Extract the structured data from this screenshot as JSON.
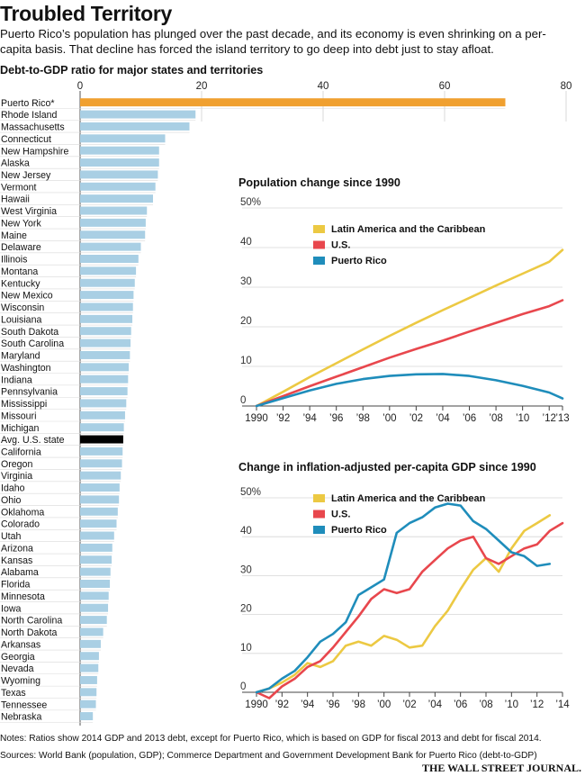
{
  "headline": "Troubled Territory",
  "dek": "Puerto Rico’s population has plunged over the past decade, and its economy is even shrinking on a per-capita basis. That decline has forced the island territory to go deep into debt just to stay afloat.",
  "notes": "Notes: Ratios show 2014 GDP and 2013 debt, except for Puerto Rico, which is based on GDP for fiscal 2013 and debt for fiscal 2014.",
  "sources": "Sources: World Bank (population, GDP); Commerce Department and Government Development Bank for Puerto Rico (debt-to-GDP)",
  "publisher": "THE WALL STREET JOURNAL.",
  "colors": {
    "highlight": "#f0a030",
    "bar": "#a9cfe4",
    "average": "#000000",
    "latam": "#ecc943",
    "us": "#e8474d",
    "pr": "#1f8dbb"
  },
  "chart_data": [
    {
      "type": "bar",
      "orientation": "horizontal",
      "title": "Debt-to-GDP ratio for major states and territories",
      "xlim": [
        0,
        80
      ],
      "xticks": [
        "0",
        "20",
        "40",
        "60",
        "80"
      ],
      "categories": [
        "Puerto Rico*",
        "Rhode Island",
        "Massachusetts",
        "Connecticut",
        "New Hampshire",
        "Alaska",
        "New Jersey",
        "Vermont",
        "Hawaii",
        "West Virginia",
        "New York",
        "Maine",
        "Delaware",
        "Illinois",
        "Montana",
        "Kentucky",
        "New Mexico",
        "Wisconsin",
        "Louisiana",
        "South Dakota",
        "South Carolina",
        "Maryland",
        "Washington",
        "Indiana",
        "Pennsylvania",
        "Mississippi",
        "Missouri",
        "Michigan",
        "Avg. U.S. state",
        "California",
        "Oregon",
        "Virginia",
        "Idaho",
        "Ohio",
        "Oklahoma",
        "Colorado",
        "Utah",
        "Arizona",
        "Kansas",
        "Alabama",
        "Florida",
        "Minnesota",
        "Iowa",
        "North Carolina",
        "North Dakota",
        "Arkansas",
        "Georgia",
        "Nevada",
        "Wyoming",
        "Texas",
        "Tennessee",
        "Nebraska"
      ],
      "values": [
        70,
        19,
        18,
        14,
        13,
        13,
        12.8,
        12.4,
        12,
        11,
        10.8,
        10.7,
        10,
        9.6,
        9.2,
        9,
        8.8,
        8.7,
        8.6,
        8.4,
        8.3,
        8.2,
        8,
        7.9,
        7.8,
        7.6,
        7.4,
        7.2,
        7.1,
        7,
        6.9,
        6.7,
        6.5,
        6.4,
        6.2,
        6,
        5.6,
        5.3,
        5.2,
        5,
        4.9,
        4.7,
        4.6,
        4.4,
        3.8,
        3.4,
        3.1,
        3,
        2.8,
        2.7,
        2.6,
        2.1
      ]
    },
    {
      "type": "line",
      "title": "Population change since 1990",
      "ylim": [
        0,
        50
      ],
      "yticks": [
        "50%",
        "40",
        "30",
        "20",
        "10",
        "0"
      ],
      "xticks": [
        "1990",
        "’92",
        "’94",
        "’96",
        "’98",
        "’00",
        "’02",
        "’04",
        "’06",
        "’08",
        "’10",
        "’12",
        "’13"
      ],
      "legend_position": "top-left",
      "series": [
        {
          "name": "Latin America and the Caribbean",
          "color": "#ecc943",
          "x": [
            1990,
            1992,
            1994,
            1996,
            1998,
            2000,
            2002,
            2004,
            2006,
            2008,
            2010,
            2012,
            2013
          ],
          "y": [
            0,
            3.6,
            7.3,
            10.8,
            14.3,
            17.7,
            21.0,
            24.2,
            27.3,
            30.4,
            33.4,
            36.4,
            39.4
          ]
        },
        {
          "name": "U.S.",
          "color": "#e8474d",
          "x": [
            1990,
            1992,
            1994,
            1996,
            1998,
            2000,
            2002,
            2004,
            2006,
            2008,
            2010,
            2012,
            2013
          ],
          "y": [
            0,
            2.5,
            5.0,
            7.4,
            9.8,
            12.2,
            14.4,
            16.5,
            18.8,
            21.0,
            23.2,
            25.2,
            26.7
          ]
        },
        {
          "name": "Puerto Rico",
          "color": "#1f8dbb",
          "x": [
            1990,
            1992,
            1994,
            1996,
            1998,
            2000,
            2002,
            2004,
            2006,
            2008,
            2010,
            2012,
            2013
          ],
          "y": [
            0,
            2.0,
            3.9,
            5.6,
            6.8,
            7.6,
            8.0,
            8.1,
            7.6,
            6.5,
            5.1,
            3.4,
            1.9
          ]
        }
      ]
    },
    {
      "type": "line",
      "title": "Change in inflation-adjusted per-capita GDP since 1990",
      "ylim": [
        0,
        50
      ],
      "yticks": [
        "50%",
        "40",
        "30",
        "20",
        "10",
        "0"
      ],
      "xticks": [
        "1990",
        "’92",
        "’94",
        "’96",
        "’98",
        "’00",
        "’02",
        "’04",
        "’06",
        "’08",
        "’10",
        "’12",
        "’14"
      ],
      "legend_position": "top-left",
      "series": [
        {
          "name": "Latin America and the Caribbean",
          "color": "#ecc943",
          "x": [
            1990,
            1991,
            1992,
            1993,
            1994,
            1995,
            1996,
            1997,
            1998,
            1999,
            2000,
            2001,
            2002,
            2003,
            2004,
            2005,
            2006,
            2007,
            2008,
            2009,
            2010,
            2011,
            2012,
            2013
          ],
          "y": [
            0,
            1.0,
            2.5,
            4.5,
            7.5,
            6.5,
            8.0,
            12.0,
            13.0,
            12.0,
            14.5,
            13.5,
            11.5,
            12.0,
            17.0,
            21.0,
            26.5,
            31.5,
            34.5,
            31.0,
            37.0,
            41.5,
            43.5,
            45.5
          ]
        },
        {
          "name": "U.S.",
          "color": "#e8474d",
          "x": [
            1990,
            1991,
            1992,
            1993,
            1994,
            1995,
            1996,
            1997,
            1998,
            1999,
            2000,
            2001,
            2002,
            2003,
            2004,
            2005,
            2006,
            2007,
            2008,
            2009,
            2010,
            2011,
            2012,
            2013,
            2014
          ],
          "y": [
            0,
            -1.5,
            1.5,
            3.5,
            6.5,
            8.0,
            11.5,
            15.5,
            19.5,
            24.0,
            26.5,
            25.5,
            26.5,
            31.0,
            34.0,
            37.0,
            39.0,
            40.0,
            34.5,
            33.0,
            35.0,
            37.0,
            38.0,
            41.5,
            43.5
          ]
        },
        {
          "name": "Puerto Rico",
          "color": "#1f8dbb",
          "x": [
            1990,
            1991,
            1992,
            1993,
            1994,
            1995,
            1996,
            1997,
            1998,
            1999,
            2000,
            2001,
            2002,
            2003,
            2004,
            2005,
            2006,
            2007,
            2008,
            2009,
            2010,
            2011,
            2012,
            2013
          ],
          "y": [
            0,
            1.0,
            3.5,
            5.5,
            9.0,
            13.0,
            15.0,
            18.0,
            25.0,
            27.0,
            29.0,
            41.0,
            43.5,
            45.0,
            47.5,
            48.5,
            48.0,
            44.0,
            42.0,
            39.0,
            36.0,
            35.0,
            32.5,
            33.0
          ]
        }
      ]
    }
  ]
}
